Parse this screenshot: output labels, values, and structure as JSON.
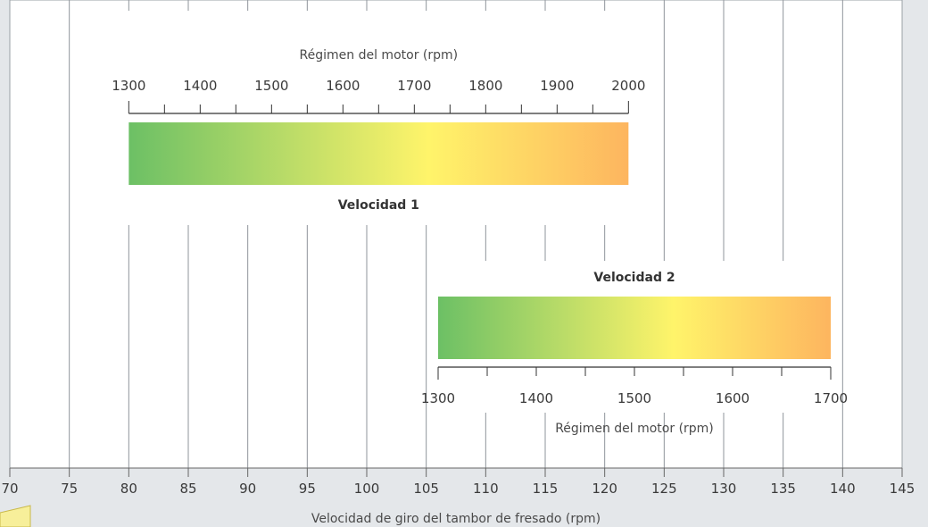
{
  "chart_data": {
    "type": "bar",
    "orientation": "horizontal",
    "xlabel": "Velocidad de giro del tambor de fresado (rpm)",
    "xlim": [
      70,
      145
    ],
    "x_ticks": [
      70,
      75,
      80,
      85,
      90,
      95,
      100,
      105,
      110,
      115,
      120,
      125,
      130,
      135,
      140,
      145
    ],
    "grid": "vertical",
    "colors": {
      "background": "#e4e7ea",
      "plot_background": "#ffffff",
      "grid": "#8f959b",
      "gradient_start": "#6cc065",
      "gradient_mid": "#fff46a",
      "gradient_end": "#fdb55f"
    },
    "series": [
      {
        "name": "Velocidad 1",
        "drum_speed_range": [
          80,
          122
        ],
        "engine_axis": {
          "label": "Régimen del motor (rpm)",
          "range": [
            1300,
            2000
          ],
          "ticks": [
            1300,
            1400,
            1500,
            1600,
            1700,
            1800,
            1900,
            2000
          ]
        }
      },
      {
        "name": "Velocidad 2",
        "drum_speed_range": [
          106,
          139
        ],
        "engine_axis": {
          "label": "Régimen del motor (rpm)",
          "range": [
            1300,
            1700
          ],
          "ticks": [
            1300,
            1400,
            1500,
            1600,
            1700
          ]
        }
      }
    ]
  }
}
